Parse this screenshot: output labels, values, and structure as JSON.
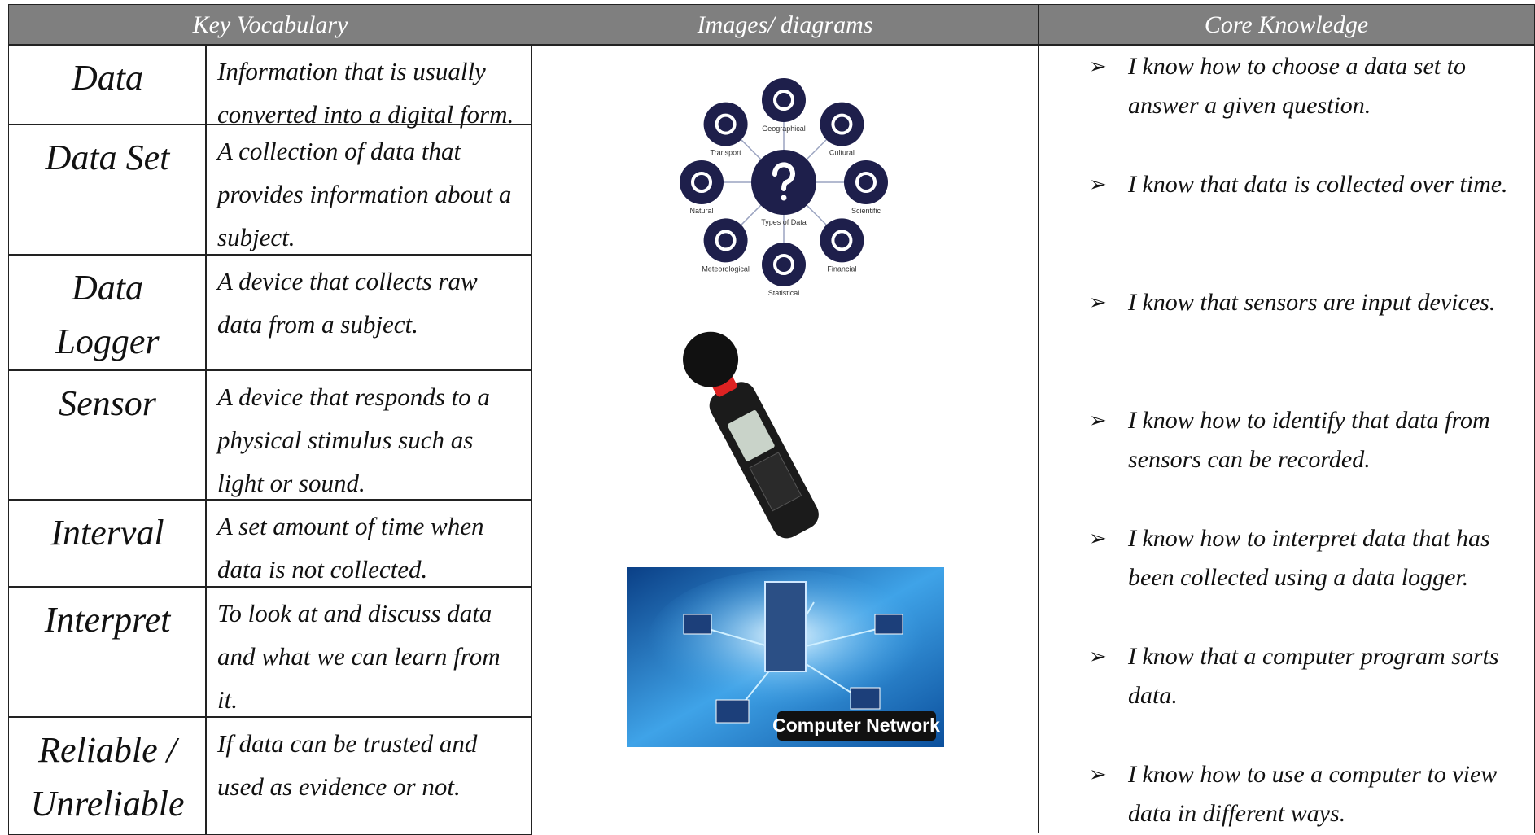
{
  "header": {
    "columns": [
      "Key Vocabulary",
      "Images/ diagrams",
      "Core Knowledge"
    ]
  },
  "vocabulary": [
    {
      "term": "Data",
      "definition": "Information that is usually converted into a digital form."
    },
    {
      "term": "Data Set",
      "definition": "A collection of data that provides information about a subject."
    },
    {
      "term": "Data Logger",
      "definition": "A device that collects raw data from a subject."
    },
    {
      "term": "Sensor",
      "definition": "A device that responds to a physical stimulus such as light or sound."
    },
    {
      "term": "Interval",
      "definition": "A set amount of time when data is not collected."
    },
    {
      "term": "Interpret",
      "definition": "To look at and discuss data and what we can learn from it."
    },
    {
      "term": "Reliable / Unreliable",
      "definition": "If data can be trusted and used as evidence or not."
    }
  ],
  "diagram": {
    "center_label": "Types of Data",
    "categories": [
      "Geographical",
      "Cultural",
      "Scientific",
      "Financial",
      "Statistical",
      "Meteorological",
      "Natural",
      "Transport"
    ]
  },
  "network_image": {
    "caption": "Computer Network"
  },
  "core_knowledge": [
    "I know how to choose a data set to answer a given question.",
    "I know that data is collected over time.",
    "I know that sensors are input devices.",
    "I know how to identify that data from sensors can be recorded.",
    "I know how to interpret data that has been collected using a data logger.",
    "I know that a computer program sorts data.",
    "I know how to use a computer to view data in different ways."
  ]
}
